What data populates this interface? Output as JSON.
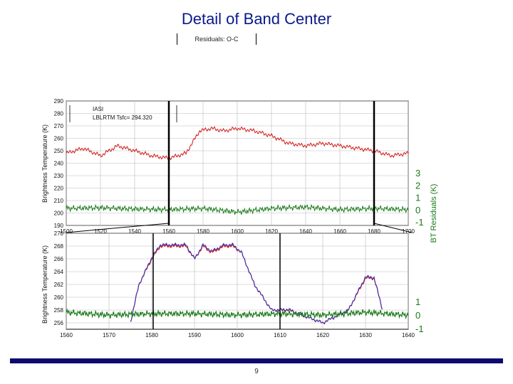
{
  "slide": {
    "title": "Detail of Band Center",
    "page_number": "9",
    "header_label": "Residuals: O-C"
  },
  "colors": {
    "observed": "#d01818",
    "model": "#3030c0",
    "residual": "#1a7a1a",
    "title": "#0a1a8a",
    "footer": "#0b0b6e"
  },
  "chart_data": [
    {
      "type": "line",
      "xlabel": "",
      "ylabel": "Brightness Temperature (K)",
      "y2label": "BT Residuals (K)",
      "xlim": [
        1500,
        1700
      ],
      "ylim": [
        190,
        290
      ],
      "y2lim": [
        -1,
        3
      ],
      "xticks": [
        1500,
        1520,
        1540,
        1560,
        1580,
        1600,
        1620,
        1640,
        1660,
        1680,
        1700
      ],
      "yticks": [
        190,
        200,
        210,
        220,
        230,
        240,
        250,
        260,
        270,
        280,
        290
      ],
      "y2ticks": [
        "3",
        "2",
        "1",
        "0",
        "-1"
      ],
      "legend": {
        "position": "top-left",
        "entries": [
          "IASI",
          "LBLRTM Tsfc= 294.320"
        ]
      },
      "series": [
        {
          "role": "observed",
          "x": [
            1500,
            1510,
            1520,
            1530,
            1540,
            1550,
            1560,
            1570,
            1578,
            1585,
            1592,
            1600,
            1610,
            1620,
            1630,
            1640,
            1650,
            1660,
            1670,
            1680,
            1690,
            1700
          ],
          "values": [
            248,
            252,
            246,
            254,
            250,
            246,
            244,
            248,
            266,
            268,
            266,
            268,
            266,
            262,
            256,
            254,
            256,
            254,
            252,
            250,
            246,
            248
          ]
        },
        {
          "role": "residual",
          "x": [
            1500,
            1520,
            1540,
            1560,
            1580,
            1600,
            1620,
            1640,
            1660,
            1680,
            1700
          ],
          "values": [
            0.1,
            0.15,
            0.05,
            0.0,
            0.1,
            -0.2,
            0.1,
            0.2,
            0.0,
            0.1,
            0.0
          ]
        }
      ]
    },
    {
      "type": "line",
      "xlabel": "",
      "ylabel": "Brightness Temperature (K)",
      "xlim": [
        1560,
        1640
      ],
      "ylim": [
        255,
        270
      ],
      "y2lim": [
        -1,
        1
      ],
      "xticks": [
        1560,
        1570,
        1580,
        1590,
        1600,
        1610,
        1620,
        1630,
        1640
      ],
      "yticks": [
        256,
        258,
        260,
        262,
        264,
        266,
        268,
        270
      ],
      "y2ticks": [
        "1",
        "0",
        "-1"
      ],
      "series": [
        {
          "role": "observed",
          "x": [
            1575,
            1577,
            1580,
            1582,
            1584,
            1586,
            1588,
            1590,
            1592,
            1594,
            1597,
            1599,
            1601,
            1604,
            1608,
            1612,
            1616,
            1620,
            1626,
            1630,
            1632,
            1634
          ],
          "values": [
            256,
            262,
            266,
            268,
            268,
            268,
            268,
            266,
            268,
            267,
            268,
            268,
            267,
            262,
            258,
            258,
            257,
            256,
            258,
            263,
            263,
            258
          ]
        },
        {
          "role": "model",
          "x": [
            1575,
            1577,
            1580,
            1582,
            1584,
            1586,
            1588,
            1590,
            1592,
            1594,
            1597,
            1599,
            1601,
            1604,
            1608,
            1612,
            1616,
            1620,
            1626,
            1630,
            1632,
            1634
          ],
          "values": [
            256,
            262,
            266.2,
            268.2,
            268.2,
            268.2,
            268.2,
            266,
            268.2,
            267.2,
            268.2,
            268.2,
            267,
            262,
            258,
            258.1,
            257,
            256,
            258,
            263.2,
            263.1,
            258
          ]
        },
        {
          "role": "residual",
          "x": [
            1560,
            1570,
            1580,
            1590,
            1600,
            1610,
            1620,
            1630,
            1640
          ],
          "values": [
            0.2,
            0.0,
            0.1,
            0.1,
            0.0,
            0.1,
            0.0,
            0.2,
            0.0
          ]
        }
      ]
    }
  ]
}
